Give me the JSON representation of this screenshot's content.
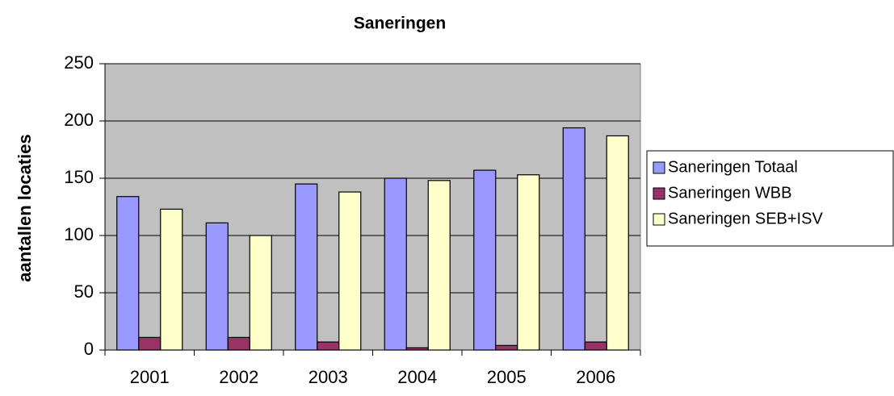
{
  "chart_data": {
    "type": "bar",
    "title": "Saneringen",
    "y_label": "aantallen locaties",
    "categories": [
      "2001",
      "2002",
      "2003",
      "2004",
      "2005",
      "2006"
    ],
    "series": [
      {
        "name": "Saneringen Totaal",
        "color": "#9999ff",
        "values": [
          134,
          111,
          145,
          150,
          157,
          194
        ]
      },
      {
        "name": "Saneringen WBB",
        "color": "#993366",
        "values": [
          11,
          11,
          7,
          2,
          4,
          7
        ]
      },
      {
        "name": "Saneringen SEB+ISV",
        "color": "#ffffcc",
        "values": [
          123,
          100,
          138,
          148,
          153,
          187
        ]
      }
    ],
    "ylim": [
      0,
      250
    ],
    "yticks": [
      0,
      50,
      100,
      150,
      200,
      250
    ],
    "grid": true,
    "legend": "right",
    "plot_background": "#c0c0c0"
  }
}
